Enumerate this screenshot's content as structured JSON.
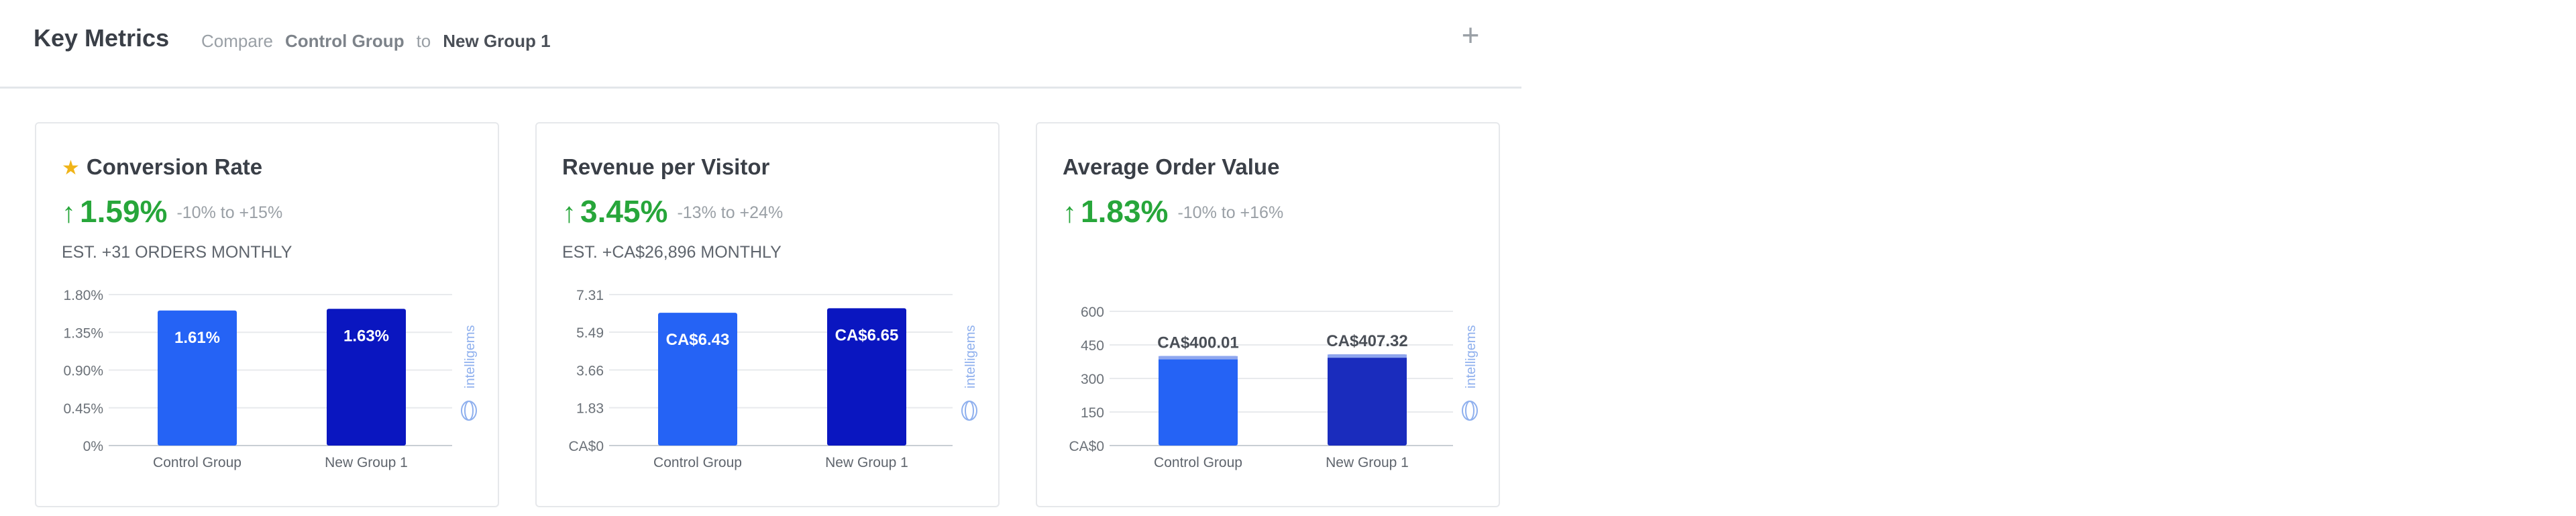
{
  "header": {
    "title": "Key Metrics",
    "compare_label": "Compare",
    "group_a": "Control Group",
    "connector": "to",
    "group_b": "New Group 1",
    "add_icon": "plus-icon"
  },
  "colors": {
    "control_bar": "#2563f5",
    "new_group_bar": "#0a16c0",
    "new_group_bar_alt": "#1a2cbd",
    "positive": "#27a63a",
    "star": "#f0b418",
    "logo": "#8fb0ee"
  },
  "cards": [
    {
      "title": "Conversion Rate",
      "starred": true,
      "star_icon": "star-icon",
      "arrow_icon": "arrow-up-icon",
      "value": "1.59%",
      "range": "-10% to +15%",
      "estimate": "EST. +31 ORDERS MONTHLY",
      "brand_text": "intelligems"
    },
    {
      "title": "Revenue per Visitor",
      "starred": false,
      "arrow_icon": "arrow-up-icon",
      "value": "3.45%",
      "range": "-13% to +24%",
      "estimate": "EST. +CA$26,896 MONTHLY",
      "brand_text": "intelligems"
    },
    {
      "title": "Average Order Value",
      "starred": false,
      "arrow_icon": "arrow-up-icon",
      "value": "1.83%",
      "range": "-10% to +16%",
      "estimate": "",
      "brand_text": "intelligems"
    }
  ],
  "chart_data": [
    {
      "type": "bar",
      "categories": [
        "Control Group",
        "New Group 1"
      ],
      "values": [
        1.61,
        1.63
      ],
      "data_labels": [
        "1.61%",
        "1.63%"
      ],
      "label_position": "inside",
      "yticks": [
        0,
        0.45,
        0.9,
        1.35,
        1.8
      ],
      "ytick_labels": [
        "0%",
        "0.45%",
        "0.90%",
        "1.35%",
        "1.80%"
      ],
      "ylim": [
        0,
        1.8
      ],
      "grid": true
    },
    {
      "type": "bar",
      "categories": [
        "Control Group",
        "New Group 1"
      ],
      "values": [
        6.43,
        6.65
      ],
      "data_labels": [
        "CA$6.43",
        "CA$6.65"
      ],
      "label_position": "inside",
      "yticks": [
        0,
        1.83,
        3.66,
        5.49,
        7.31
      ],
      "ytick_labels": [
        "CA$0",
        "1.83",
        "3.66",
        "5.49",
        "7.31"
      ],
      "ylim": [
        0,
        7.31
      ],
      "grid": true
    },
    {
      "type": "bar",
      "categories": [
        "Control Group",
        "New Group 1"
      ],
      "values": [
        400.01,
        407.32
      ],
      "data_labels": [
        "CA$400.01",
        "CA$407.32"
      ],
      "label_position": "above",
      "yticks": [
        0,
        150,
        300,
        450,
        600
      ],
      "ytick_labels": [
        "CA$0",
        "150",
        "300",
        "450",
        "600"
      ],
      "ylim": [
        0,
        600
      ],
      "grid": true
    }
  ]
}
